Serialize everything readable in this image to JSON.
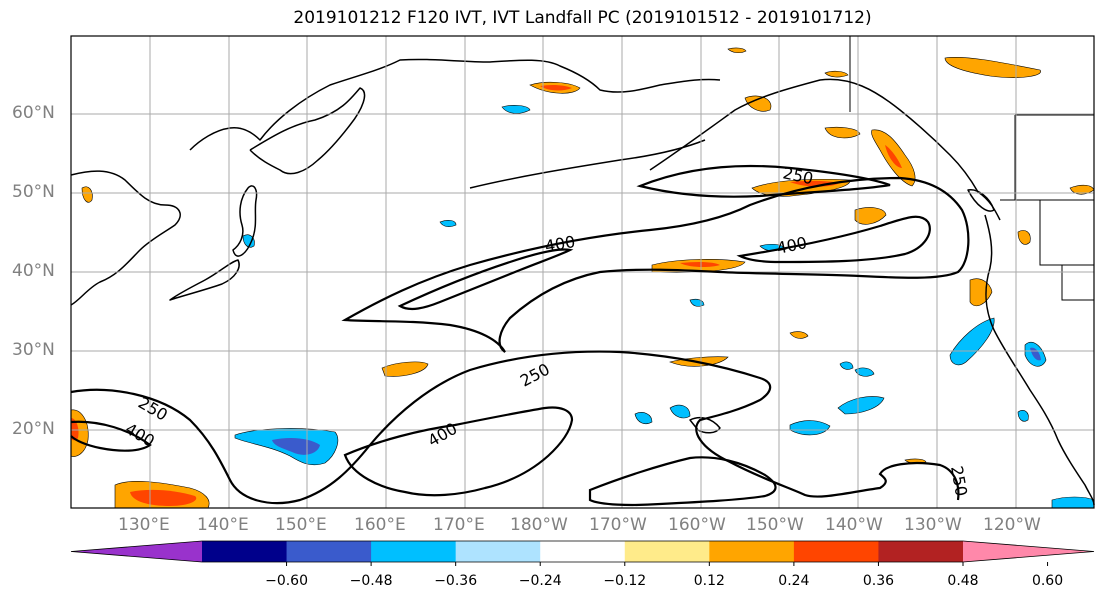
{
  "title": "2019101212 F120 IVT, IVT Landfall PC (2019101512 - 2019101712)",
  "lat_labels": [
    "60°N",
    "50°N",
    "40°N",
    "30°N",
    "20°N"
  ],
  "lon_labels": [
    "130°E",
    "140°E",
    "150°E",
    "160°E",
    "170°E",
    "180°W",
    "170°W",
    "160°W",
    "150°W",
    "140°W",
    "130°W",
    "120°W"
  ],
  "contour_labels": [
    "250",
    "400",
    "400",
    "250",
    "400",
    "250",
    "400",
    "250"
  ],
  "colorbar": {
    "colors": [
      "#9932CC",
      "#00008B",
      "#3A5BCC",
      "#00BFFF",
      "#AEE3FF",
      "#FFFFFF",
      "#FFEB8A",
      "#FFA500",
      "#FF4500",
      "#B22222",
      "#FF88AA"
    ],
    "tick_labels": [
      "−0.60",
      "−0.48",
      "−0.36",
      "−0.24",
      "−0.12",
      "0.12",
      "0.24",
      "0.36",
      "0.48",
      "0.60"
    ]
  },
  "colors": {
    "coast": "#000000",
    "contour": "#000000",
    "grid": "#aaaaaa",
    "warm_light": "#FFEB8A",
    "warm_mid": "#FFA500",
    "warm_high": "#FF4500",
    "cool_light": "#AEE3FF",
    "cool_mid": "#00BFFF",
    "cool_high": "#3A5BCC"
  }
}
